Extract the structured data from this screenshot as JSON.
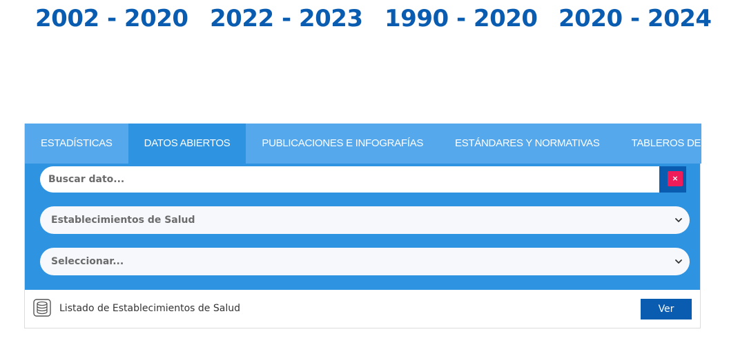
{
  "years": [
    "2002 - 2020",
    "2022 - 2023",
    "1990 - 2020",
    "2020 - 2024"
  ],
  "tabs": [
    {
      "label": "ESTADÍSTICAS",
      "active": false
    },
    {
      "label": "DATOS ABIERTOS",
      "active": true
    },
    {
      "label": "PUBLICACIONES E INFOGRAFÍAS",
      "active": false
    },
    {
      "label": "ESTÁNDARES Y NORMATIVAS",
      "active": false
    },
    {
      "label": "TABLEROS DEIS",
      "active": false
    }
  ],
  "search": {
    "placeholder": "Buscar dato...",
    "value": "",
    "clear_icon": "close-icon",
    "clear_glyph": "×"
  },
  "selects": {
    "category": {
      "value": "Establecimientos de Salud",
      "icon": "chevron-down-icon"
    },
    "subcategory": {
      "value": "Seleccionar...",
      "icon": "chevron-down-icon"
    }
  },
  "result": {
    "icon": "database-icon",
    "label": "Listado de Establecimientos de Salud",
    "button_label": "Ver"
  },
  "colors": {
    "heading": "#0a5cb1",
    "tab_bar": "#55a8ec",
    "tab_active": "#2e93e1",
    "filter_bg": "#2e93e1",
    "button": "#0a5cb1",
    "clear": "#ee1d5a"
  }
}
